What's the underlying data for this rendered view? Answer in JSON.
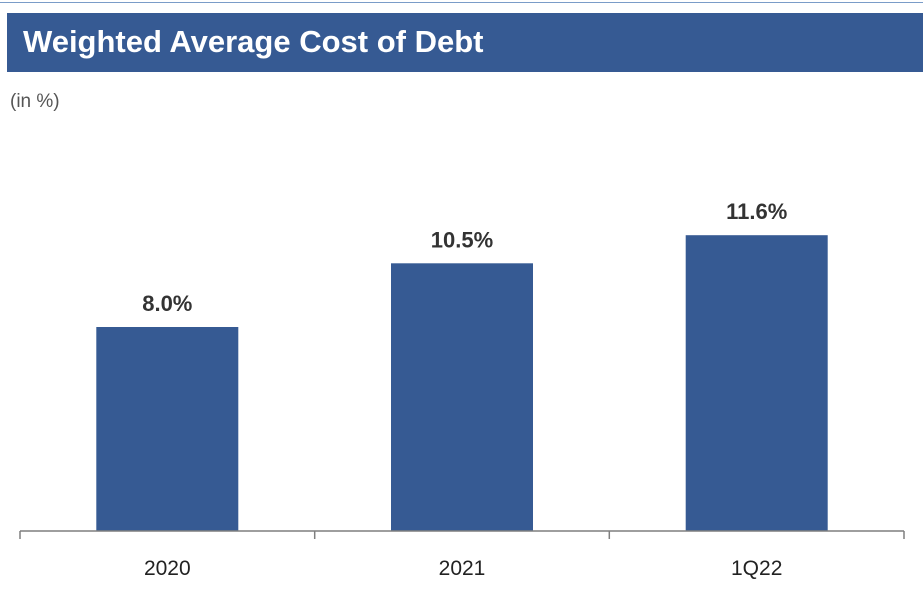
{
  "header": {
    "title": "Weighted Average Cost of Debt"
  },
  "unit_note": "(in %)",
  "colors": {
    "header_bg": "#365a93",
    "bar": "#365a93",
    "axis": "#7f7f7f"
  },
  "chart_data": {
    "type": "bar",
    "title": "Weighted Average Cost of Debt",
    "ylabel": "(in %)",
    "xlabel": "",
    "categories": [
      "2020",
      "2021",
      "1Q22"
    ],
    "values": [
      8.0,
      10.5,
      11.6
    ],
    "value_labels": [
      "8.0%",
      "10.5%",
      "11.6%"
    ],
    "ylim": [
      0,
      19
    ],
    "grid": false,
    "legend": "none"
  }
}
